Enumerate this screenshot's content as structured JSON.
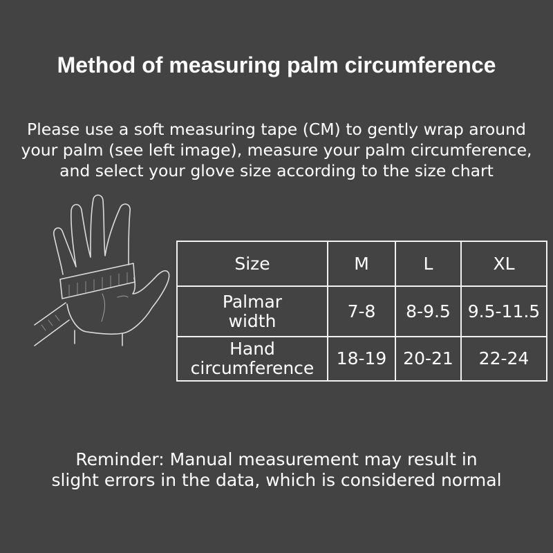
{
  "title": "Method of measuring palm circumference",
  "instructions": [
    "Please use a soft measuring tape (CM) to gently wrap around",
    "your palm (see left image), measure your palm circumference,",
    "and select your glove size according to the size chart"
  ],
  "size_table": {
    "header": [
      "Size",
      "M",
      "L",
      "XL"
    ],
    "rows": [
      {
        "label_lines": [
          "Palmar",
          "width"
        ],
        "values": [
          "7-8",
          "8-9.5",
          "9.5-11.5"
        ]
      },
      {
        "label_lines": [
          "Hand",
          "circumference"
        ],
        "values": [
          "18-19",
          "20-21",
          "22-24"
        ]
      }
    ]
  },
  "reminder": [
    "Reminder: Manual measurement may result in",
    "slight errors in the data, which is considered normal"
  ],
  "colors": {
    "background": "#434343",
    "text": "#ffffff",
    "line": "#dddddd"
  }
}
